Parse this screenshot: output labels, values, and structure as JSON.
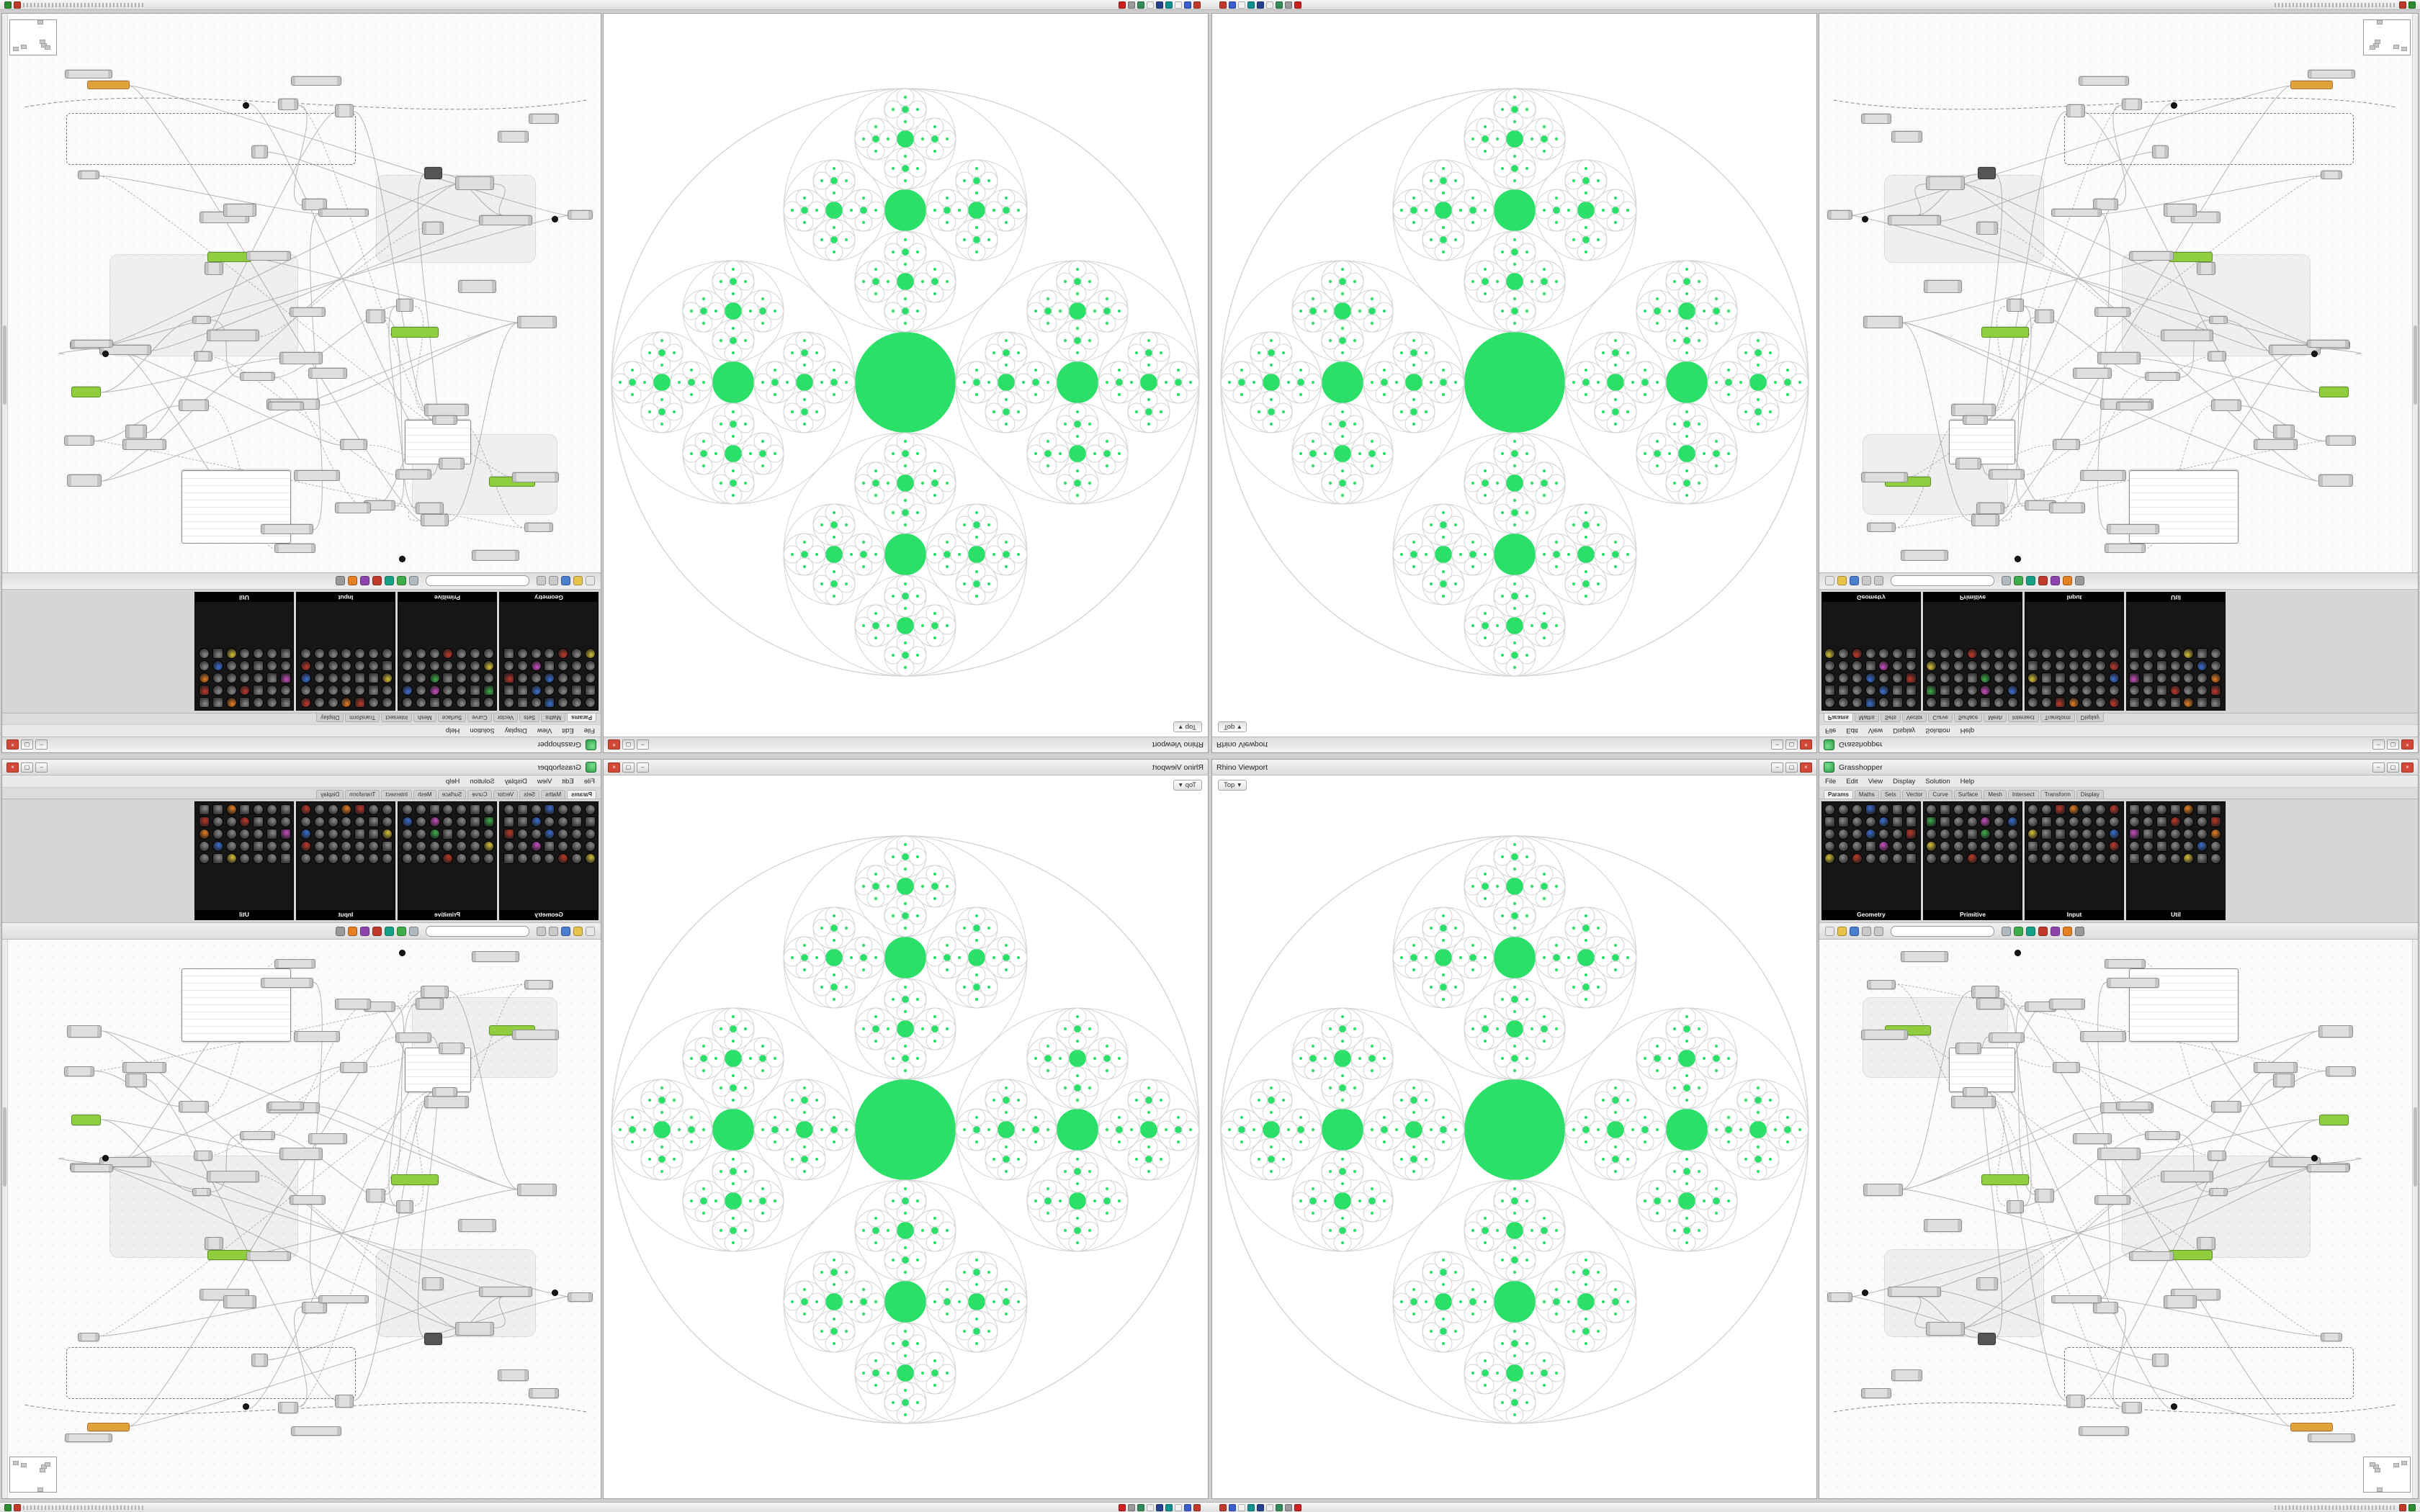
{
  "chrome": {
    "window_buttons": [
      {
        "name": "minimize",
        "glyph": "–"
      },
      {
        "name": "maximize",
        "glyph": "▢"
      },
      {
        "name": "close",
        "glyph": "×"
      }
    ]
  },
  "viewport": {
    "title": "Rhino Viewport",
    "tab_label": "Top",
    "chevron": "▾"
  },
  "grasshopper": {
    "title": "Grasshopper",
    "menus": [
      "File",
      "Edit",
      "View",
      "Display",
      "Solution",
      "Help"
    ],
    "tabs": [
      "Params",
      "Maths",
      "Sets",
      "Vector",
      "Curve",
      "Surface",
      "Mesh",
      "Intersect",
      "Transform",
      "Display"
    ],
    "selected_tab": "Params",
    "palettes": [
      "Geometry",
      "Primitive",
      "Input",
      "Util"
    ],
    "search_placeholder": "",
    "toolbar_icons": [
      {
        "name": "new-file-icon",
        "color": "#e6e6e6"
      },
      {
        "name": "open-file-icon",
        "color": "#e8c34a"
      },
      {
        "name": "save-file-icon",
        "color": "#4a7fd0"
      },
      {
        "name": "zoom-icon",
        "color": "#c9c9c9"
      },
      {
        "name": "pan-icon",
        "color": "#c9c9c9"
      },
      {
        "name": "wire-display-icon",
        "color": "#b0b8c0"
      },
      {
        "name": "preview-icon",
        "color": "#3fae4a"
      },
      {
        "name": "shaded-preview-icon",
        "color": "#16a085"
      },
      {
        "name": "bake-icon",
        "color": "#c0392b"
      },
      {
        "name": "group-icon",
        "color": "#8e44ad"
      },
      {
        "name": "cluster-icon",
        "color": "#e67e22"
      },
      {
        "name": "settings-icon",
        "color": "#9a9a9a"
      }
    ],
    "palette_icon_colors": [
      "#c94fc0",
      "#3fae4a",
      "#d7c23a",
      "#3c6fd0",
      "#c0392b",
      "#e67e22"
    ]
  },
  "taskbar": {
    "cluster_icons": [
      {
        "name": "taskbar-app-red",
        "color": "#c0392b"
      },
      {
        "name": "taskbar-app-blue",
        "color": "#3a5fcd"
      },
      {
        "name": "taskbar-app-white",
        "color": "#f2f2f2"
      },
      {
        "name": "taskbar-app-teal",
        "color": "#0f8f8f"
      },
      {
        "name": "taskbar-app-navy",
        "color": "#27408b"
      },
      {
        "name": "taskbar-app-light",
        "color": "#ededed"
      },
      {
        "name": "taskbar-app-green",
        "color": "#2e8b57"
      },
      {
        "name": "taskbar-app-gray",
        "color": "#9a9a9a"
      },
      {
        "name": "taskbar-app-red2",
        "color": "#cc2222"
      }
    ],
    "corner_icons": [
      {
        "name": "status-green-icon",
        "color": "#2e8b2e"
      },
      {
        "name": "status-red-icon",
        "color": "#c0392b"
      }
    ]
  },
  "fractal": {
    "green": "#2be069",
    "outline": "#d4d4d4",
    "ratio_child": 0.41421356,
    "ratio_gap": 0.17157288,
    "depth": 5
  },
  "canvas": {
    "seed": 1234,
    "node_count": 64,
    "wire_count": 42,
    "wire_color": "#b5b5b5"
  }
}
